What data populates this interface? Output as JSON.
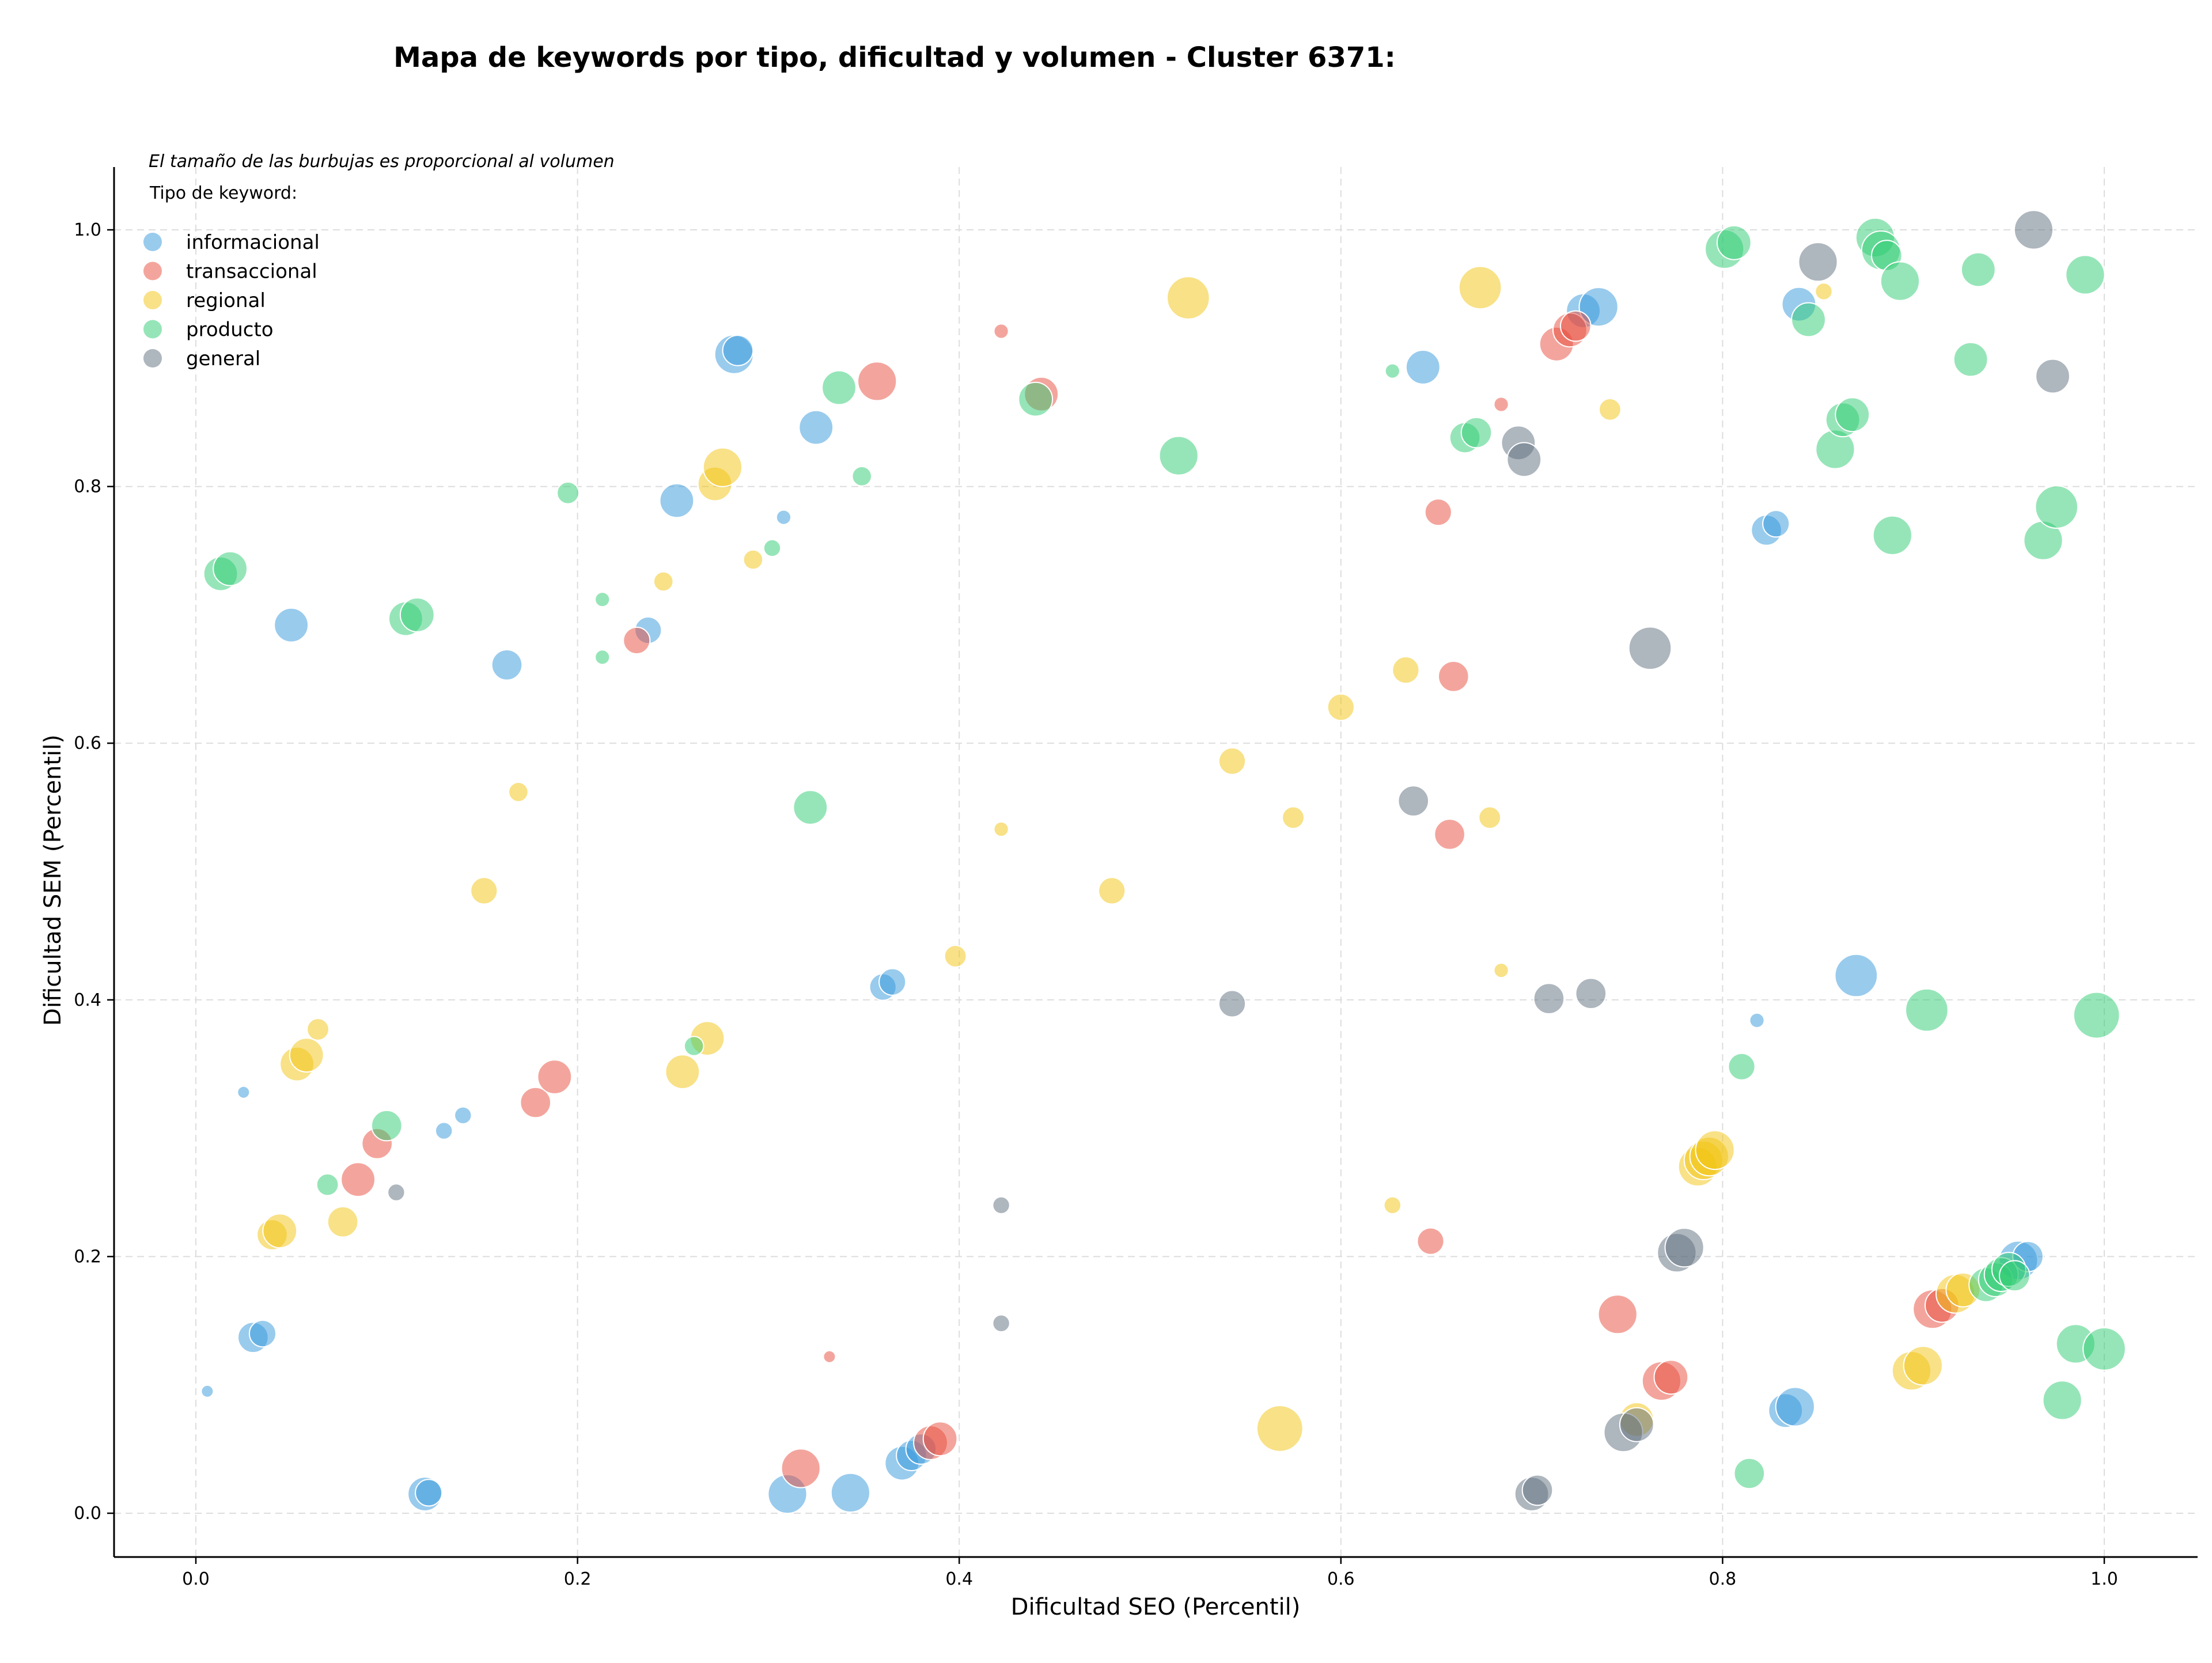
{
  "chart_data": {
    "type": "scatter",
    "title": "Mapa de keywords por tipo, dificultad y volumen - Cluster 6371:",
    "xlabel": "Dificultad SEO (Percentil)",
    "ylabel": "Dificultad SEM (Percentil)",
    "note": "El tamaño de las burbujas es proporcional al volumen",
    "legend_title": "Tipo de keyword:",
    "legend_position": "top-left",
    "grid": true,
    "xlim": [
      -0.04,
      1.05
    ],
    "ylim": [
      -0.03,
      1.05
    ],
    "xticks": [
      "0.0",
      "0.2",
      "0.4",
      "0.6",
      "0.8",
      "1.0"
    ],
    "yticks": [
      "0.0",
      "0.2",
      "0.4",
      "0.6",
      "0.8",
      "1.0"
    ],
    "series": [
      {
        "name": "informacional",
        "color": "#3498db",
        "points": [
          {
            "x": 0.006,
            "y": 0.095,
            "size": 10
          },
          {
            "x": 0.025,
            "y": 0.328,
            "size": 10
          },
          {
            "x": 0.03,
            "y": 0.137,
            "size": 25
          },
          {
            "x": 0.035,
            "y": 0.14,
            "size": 22
          },
          {
            "x": 0.05,
            "y": 0.692,
            "size": 28
          },
          {
            "x": 0.12,
            "y": 0.015,
            "size": 28
          },
          {
            "x": 0.122,
            "y": 0.016,
            "size": 22
          },
          {
            "x": 0.13,
            "y": 0.298,
            "size": 14
          },
          {
            "x": 0.14,
            "y": 0.31,
            "size": 14
          },
          {
            "x": 0.163,
            "y": 0.661,
            "size": 25
          },
          {
            "x": 0.237,
            "y": 0.688,
            "size": 22
          },
          {
            "x": 0.252,
            "y": 0.789,
            "size": 28
          },
          {
            "x": 0.282,
            "y": 0.903,
            "size": 32
          },
          {
            "x": 0.284,
            "y": 0.906,
            "size": 25
          },
          {
            "x": 0.308,
            "y": 0.776,
            "size": 12
          },
          {
            "x": 0.31,
            "y": 0.015,
            "size": 32
          },
          {
            "x": 0.325,
            "y": 0.846,
            "size": 28
          },
          {
            "x": 0.343,
            "y": 0.016,
            "size": 32
          },
          {
            "x": 0.36,
            "y": 0.41,
            "size": 22
          },
          {
            "x": 0.365,
            "y": 0.414,
            "size": 22
          },
          {
            "x": 0.37,
            "y": 0.039,
            "size": 28
          },
          {
            "x": 0.375,
            "y": 0.045,
            "size": 25
          },
          {
            "x": 0.38,
            "y": 0.05,
            "size": 25
          },
          {
            "x": 0.643,
            "y": 0.893,
            "size": 28
          },
          {
            "x": 0.727,
            "y": 0.937,
            "size": 28
          },
          {
            "x": 0.735,
            "y": 0.94,
            "size": 32
          },
          {
            "x": 0.818,
            "y": 0.384,
            "size": 12
          },
          {
            "x": 0.823,
            "y": 0.766,
            "size": 25
          },
          {
            "x": 0.828,
            "y": 0.771,
            "size": 22
          },
          {
            "x": 0.833,
            "y": 0.08,
            "size": 28
          },
          {
            "x": 0.838,
            "y": 0.083,
            "size": 32
          },
          {
            "x": 0.84,
            "y": 0.942,
            "size": 28
          },
          {
            "x": 0.87,
            "y": 0.419,
            "size": 35
          },
          {
            "x": 0.955,
            "y": 0.197,
            "size": 32
          },
          {
            "x": 0.96,
            "y": 0.2,
            "size": 25
          }
        ]
      },
      {
        "name": "transaccional",
        "color": "#e74c3c",
        "points": [
          {
            "x": 0.085,
            "y": 0.26,
            "size": 28
          },
          {
            "x": 0.095,
            "y": 0.288,
            "size": 25
          },
          {
            "x": 0.178,
            "y": 0.32,
            "size": 25
          },
          {
            "x": 0.188,
            "y": 0.34,
            "size": 28
          },
          {
            "x": 0.231,
            "y": 0.68,
            "size": 22
          },
          {
            "x": 0.317,
            "y": 0.035,
            "size": 32
          },
          {
            "x": 0.332,
            "y": 0.122,
            "size": 10
          },
          {
            "x": 0.357,
            "y": 0.882,
            "size": 32
          },
          {
            "x": 0.385,
            "y": 0.055,
            "size": 28
          },
          {
            "x": 0.39,
            "y": 0.058,
            "size": 28
          },
          {
            "x": 0.422,
            "y": 0.921,
            "size": 12
          },
          {
            "x": 0.443,
            "y": 0.872,
            "size": 28
          },
          {
            "x": 0.651,
            "y": 0.78,
            "size": 22
          },
          {
            "x": 0.647,
            "y": 0.212,
            "size": 22
          },
          {
            "x": 0.657,
            "y": 0.529,
            "size": 25
          },
          {
            "x": 0.659,
            "y": 0.652,
            "size": 25
          },
          {
            "x": 0.684,
            "y": 0.864,
            "size": 12
          },
          {
            "x": 0.713,
            "y": 0.911,
            "size": 28
          },
          {
            "x": 0.72,
            "y": 0.922,
            "size": 28
          },
          {
            "x": 0.723,
            "y": 0.925,
            "size": 25
          },
          {
            "x": 0.745,
            "y": 0.155,
            "size": 32
          },
          {
            "x": 0.768,
            "y": 0.103,
            "size": 32
          },
          {
            "x": 0.773,
            "y": 0.106,
            "size": 28
          },
          {
            "x": 0.91,
            "y": 0.159,
            "size": 32
          },
          {
            "x": 0.915,
            "y": 0.162,
            "size": 28
          }
        ]
      },
      {
        "name": "regional",
        "color": "#f1c40f",
        "points": [
          {
            "x": 0.04,
            "y": 0.217,
            "size": 25
          },
          {
            "x": 0.044,
            "y": 0.22,
            "size": 28
          },
          {
            "x": 0.053,
            "y": 0.35,
            "size": 28
          },
          {
            "x": 0.058,
            "y": 0.357,
            "size": 28
          },
          {
            "x": 0.064,
            "y": 0.377,
            "size": 18
          },
          {
            "x": 0.077,
            "y": 0.227,
            "size": 25
          },
          {
            "x": 0.151,
            "y": 0.485,
            "size": 22
          },
          {
            "x": 0.169,
            "y": 0.562,
            "size": 16
          },
          {
            "x": 0.245,
            "y": 0.726,
            "size": 16
          },
          {
            "x": 0.255,
            "y": 0.344,
            "size": 28
          },
          {
            "x": 0.268,
            "y": 0.37,
            "size": 28
          },
          {
            "x": 0.272,
            "y": 0.802,
            "size": 28
          },
          {
            "x": 0.276,
            "y": 0.815,
            "size": 32
          },
          {
            "x": 0.292,
            "y": 0.743,
            "size": 16
          },
          {
            "x": 0.398,
            "y": 0.434,
            "size": 18
          },
          {
            "x": 0.422,
            "y": 0.533,
            "size": 12
          },
          {
            "x": 0.48,
            "y": 0.485,
            "size": 22
          },
          {
            "x": 0.52,
            "y": 0.947,
            "size": 35
          },
          {
            "x": 0.543,
            "y": 0.586,
            "size": 22
          },
          {
            "x": 0.568,
            "y": 0.066,
            "size": 38
          },
          {
            "x": 0.575,
            "y": 0.542,
            "size": 18
          },
          {
            "x": 0.6,
            "y": 0.628,
            "size": 22
          },
          {
            "x": 0.627,
            "y": 0.24,
            "size": 14
          },
          {
            "x": 0.634,
            "y": 0.657,
            "size": 22
          },
          {
            "x": 0.673,
            "y": 0.955,
            "size": 35
          },
          {
            "x": 0.678,
            "y": 0.542,
            "size": 18
          },
          {
            "x": 0.684,
            "y": 0.423,
            "size": 12
          },
          {
            "x": 0.741,
            "y": 0.86,
            "size": 18
          },
          {
            "x": 0.755,
            "y": 0.073,
            "size": 28
          },
          {
            "x": 0.787,
            "y": 0.27,
            "size": 32
          },
          {
            "x": 0.79,
            "y": 0.275,
            "size": 32
          },
          {
            "x": 0.793,
            "y": 0.278,
            "size": 32
          },
          {
            "x": 0.796,
            "y": 0.283,
            "size": 32
          },
          {
            "x": 0.853,
            "y": 0.952,
            "size": 14
          },
          {
            "x": 0.899,
            "y": 0.111,
            "size": 32
          },
          {
            "x": 0.905,
            "y": 0.115,
            "size": 32
          },
          {
            "x": 0.922,
            "y": 0.171,
            "size": 32
          },
          {
            "x": 0.926,
            "y": 0.174,
            "size": 28
          }
        ]
      },
      {
        "name": "producto",
        "color": "#2ecc71",
        "points": [
          {
            "x": 0.013,
            "y": 0.732,
            "size": 28
          },
          {
            "x": 0.018,
            "y": 0.736,
            "size": 28
          },
          {
            "x": 0.069,
            "y": 0.256,
            "size": 18
          },
          {
            "x": 0.1,
            "y": 0.302,
            "size": 25
          },
          {
            "x": 0.11,
            "y": 0.697,
            "size": 28
          },
          {
            "x": 0.116,
            "y": 0.7,
            "size": 28
          },
          {
            "x": 0.195,
            "y": 0.795,
            "size": 18
          },
          {
            "x": 0.213,
            "y": 0.712,
            "size": 12
          },
          {
            "x": 0.213,
            "y": 0.667,
            "size": 12
          },
          {
            "x": 0.261,
            "y": 0.364,
            "size": 16
          },
          {
            "x": 0.302,
            "y": 0.752,
            "size": 14
          },
          {
            "x": 0.322,
            "y": 0.55,
            "size": 28
          },
          {
            "x": 0.337,
            "y": 0.877,
            "size": 28
          },
          {
            "x": 0.349,
            "y": 0.808,
            "size": 16
          },
          {
            "x": 0.44,
            "y": 0.868,
            "size": 28
          },
          {
            "x": 0.515,
            "y": 0.824,
            "size": 32
          },
          {
            "x": 0.627,
            "y": 0.89,
            "size": 12
          },
          {
            "x": 0.665,
            "y": 0.838,
            "size": 25
          },
          {
            "x": 0.671,
            "y": 0.842,
            "size": 25
          },
          {
            "x": 0.801,
            "y": 0.985,
            "size": 32
          },
          {
            "x": 0.806,
            "y": 0.99,
            "size": 28
          },
          {
            "x": 0.81,
            "y": 0.348,
            "size": 22
          },
          {
            "x": 0.814,
            "y": 0.031,
            "size": 25
          },
          {
            "x": 0.845,
            "y": 0.93,
            "size": 28
          },
          {
            "x": 0.859,
            "y": 0.829,
            "size": 32
          },
          {
            "x": 0.863,
            "y": 0.852,
            "size": 28
          },
          {
            "x": 0.868,
            "y": 0.856,
            "size": 28
          },
          {
            "x": 0.88,
            "y": 0.994,
            "size": 32
          },
          {
            "x": 0.883,
            "y": 0.984,
            "size": 32
          },
          {
            "x": 0.886,
            "y": 0.98,
            "size": 25
          },
          {
            "x": 0.889,
            "y": 0.762,
            "size": 32
          },
          {
            "x": 0.893,
            "y": 0.96,
            "size": 32
          },
          {
            "x": 0.907,
            "y": 0.392,
            "size": 35
          },
          {
            "x": 0.93,
            "y": 0.899,
            "size": 28
          },
          {
            "x": 0.934,
            "y": 0.969,
            "size": 28
          },
          {
            "x": 0.938,
            "y": 0.178,
            "size": 28
          },
          {
            "x": 0.943,
            "y": 0.182,
            "size": 28
          },
          {
            "x": 0.946,
            "y": 0.186,
            "size": 28
          },
          {
            "x": 0.95,
            "y": 0.19,
            "size": 28
          },
          {
            "x": 0.953,
            "y": 0.185,
            "size": 25
          },
          {
            "x": 0.968,
            "y": 0.758,
            "size": 32
          },
          {
            "x": 0.975,
            "y": 0.784,
            "size": 35
          },
          {
            "x": 0.978,
            "y": 0.088,
            "size": 32
          },
          {
            "x": 0.985,
            "y": 0.132,
            "size": 32
          },
          {
            "x": 0.99,
            "y": 0.965,
            "size": 32
          },
          {
            "x": 0.996,
            "y": 0.388,
            "size": 38
          },
          {
            "x": 1.0,
            "y": 0.128,
            "size": 35
          }
        ]
      },
      {
        "name": "general",
        "color": "#5d6d7e",
        "points": [
          {
            "x": 0.105,
            "y": 0.25,
            "size": 14
          },
          {
            "x": 0.422,
            "y": 0.24,
            "size": 14
          },
          {
            "x": 0.422,
            "y": 0.148,
            "size": 14
          },
          {
            "x": 0.543,
            "y": 0.397,
            "size": 22
          },
          {
            "x": 0.638,
            "y": 0.555,
            "size": 25
          },
          {
            "x": 0.693,
            "y": 0.834,
            "size": 28
          },
          {
            "x": 0.696,
            "y": 0.821,
            "size": 28
          },
          {
            "x": 0.7,
            "y": 0.015,
            "size": 28
          },
          {
            "x": 0.703,
            "y": 0.018,
            "size": 25
          },
          {
            "x": 0.709,
            "y": 0.401,
            "size": 25
          },
          {
            "x": 0.731,
            "y": 0.405,
            "size": 25
          },
          {
            "x": 0.748,
            "y": 0.063,
            "size": 32
          },
          {
            "x": 0.755,
            "y": 0.069,
            "size": 28
          },
          {
            "x": 0.762,
            "y": 0.674,
            "size": 35
          },
          {
            "x": 0.776,
            "y": 0.203,
            "size": 32
          },
          {
            "x": 0.78,
            "y": 0.207,
            "size": 32
          },
          {
            "x": 0.85,
            "y": 0.975,
            "size": 32
          },
          {
            "x": 0.963,
            "y": 1.0,
            "size": 32
          },
          {
            "x": 0.973,
            "y": 0.886,
            "size": 28
          }
        ]
      }
    ]
  }
}
